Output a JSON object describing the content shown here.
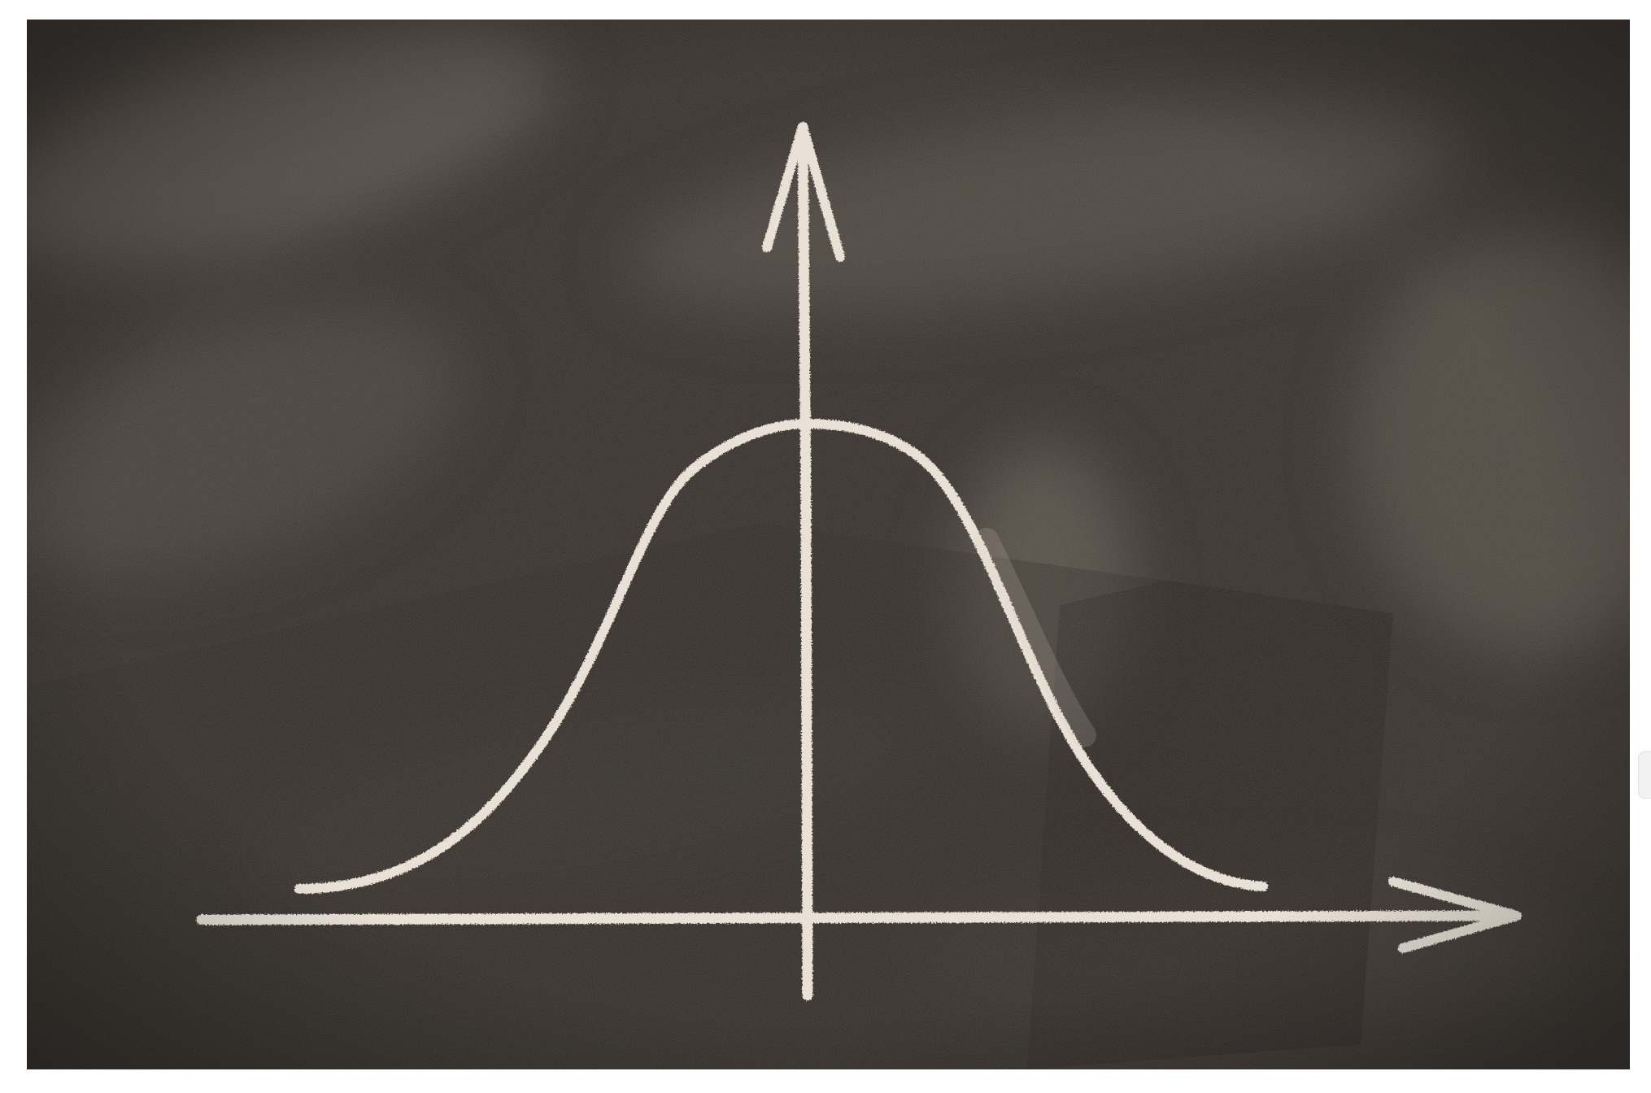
{
  "image": {
    "alt": "",
    "colors": {
      "board_base": "#2f2a26",
      "board_dark": "#221e1b",
      "smudge": "#6a625b",
      "chalk": "#e9e1d6"
    },
    "drawing": {
      "curve_shape": "bell",
      "axes": [
        "horizontal-arrow",
        "vertical-arrow"
      ]
    }
  }
}
